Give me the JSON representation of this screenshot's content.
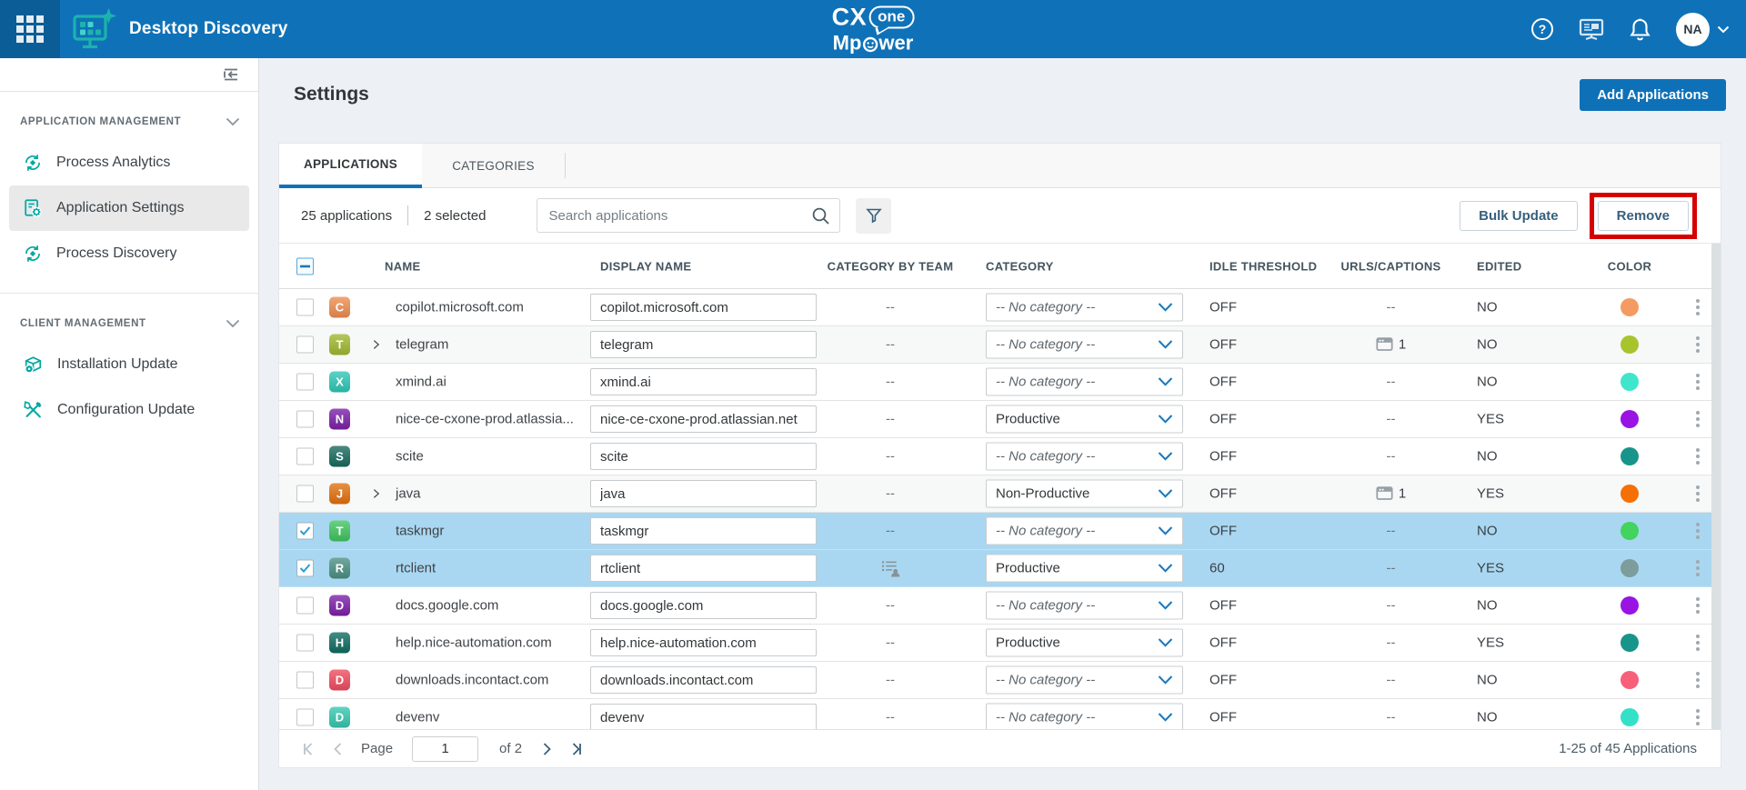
{
  "topbar": {
    "app_title": "Desktop Discovery",
    "brand": {
      "line1_left": "CX",
      "line1_bubble": "one",
      "line2_prefix": "Mp",
      "line2_suffix": "wer"
    },
    "avatar": "NA"
  },
  "sidebar": {
    "sections": [
      {
        "label": "APPLICATION MANAGEMENT",
        "items": [
          {
            "label": "Process Analytics"
          },
          {
            "label": "Application Settings"
          },
          {
            "label": "Process Discovery"
          }
        ]
      },
      {
        "label": "CLIENT MANAGEMENT",
        "items": [
          {
            "label": "Installation Update"
          },
          {
            "label": "Configuration Update"
          }
        ]
      }
    ]
  },
  "page": {
    "title": "Settings",
    "add_button": "Add Applications"
  },
  "tabs": {
    "applications": "APPLICATIONS",
    "categories": "CATEGORIES"
  },
  "toolbar": {
    "count_label": "25 applications",
    "selected_label": "2 selected",
    "search_placeholder": "Search applications",
    "bulk_update": "Bulk Update",
    "remove": "Remove"
  },
  "table": {
    "columns": {
      "name": "NAME",
      "display_name": "DISPLAY NAME",
      "category_by_team": "CATEGORY BY TEAM",
      "category": "CATEGORY",
      "idle_threshold": "IDLE THRESHOLD",
      "urls_captions": "URLS/CAPTIONS",
      "edited": "EDITED",
      "color": "COLOR"
    },
    "rows": [
      {
        "name": "copilot.microsoft.com",
        "display": "copilot.microsoft.com",
        "letter": "C",
        "tile": "#ee8c4f",
        "team": "--",
        "category": "-- No category --",
        "no_cat": true,
        "idle": "OFF",
        "urls": "--",
        "edited": "NO",
        "dot": "#f49b63"
      },
      {
        "name": "telegram",
        "display": "telegram",
        "letter": "T",
        "tile": "#9fb82f",
        "expandable": true,
        "group": true,
        "team": "--",
        "category": "-- No category --",
        "no_cat": true,
        "idle": "OFF",
        "urls_count": "1",
        "edited": "NO",
        "dot": "#a8c42d"
      },
      {
        "name": "xmind.ai",
        "display": "xmind.ai",
        "letter": "X",
        "tile": "#2ec6b5",
        "team": "--",
        "category": "-- No category --",
        "no_cat": true,
        "idle": "OFF",
        "urls": "--",
        "edited": "NO",
        "dot": "#3fe6cc"
      },
      {
        "name": "nice-ce-cxone-prod.atlassia...",
        "display": "nice-ce-cxone-prod.atlassian.net",
        "letter": "N",
        "tile": "#7b1fa8",
        "team": "--",
        "category": "Productive",
        "no_cat": false,
        "idle": "OFF",
        "urls": "--",
        "edited": "YES",
        "dot": "#9913e3"
      },
      {
        "name": "scite",
        "display": "scite",
        "letter": "S",
        "tile": "#18695d",
        "team": "--",
        "category": "-- No category --",
        "no_cat": true,
        "idle": "OFF",
        "urls": "--",
        "edited": "NO",
        "dot": "#18948a"
      },
      {
        "name": "java",
        "display": "java",
        "letter": "J",
        "tile": "#e2700f",
        "expandable": true,
        "group": true,
        "team": "--",
        "category": "Non-Productive",
        "no_cat": false,
        "idle": "OFF",
        "urls_count": "1",
        "edited": "YES",
        "dot": "#f56f02"
      },
      {
        "name": "taskmgr",
        "display": "taskmgr",
        "letter": "T",
        "tile": "#3fc45f",
        "selected": true,
        "team": "--",
        "category": "-- No category --",
        "no_cat": true,
        "idle": "OFF",
        "urls": "--",
        "edited": "NO",
        "dot": "#43d35f"
      },
      {
        "name": "rtclient",
        "display": "rtclient",
        "letter": "R",
        "tile": "#4a8f82",
        "selected": true,
        "team_icon": true,
        "category": "Productive",
        "no_cat": false,
        "idle": "60",
        "urls": "--",
        "edited": "YES",
        "dot": "#7d9c9c"
      },
      {
        "name": "docs.google.com",
        "display": "docs.google.com",
        "letter": "D",
        "tile": "#7b1fa8",
        "team": "--",
        "category": "-- No category --",
        "no_cat": true,
        "idle": "OFF",
        "urls": "--",
        "edited": "NO",
        "dot": "#9913e3"
      },
      {
        "name": "help.nice-automation.com",
        "display": "help.nice-automation.com",
        "letter": "H",
        "tile": "#0e6b60",
        "team": "--",
        "category": "Productive",
        "no_cat": false,
        "idle": "OFF",
        "urls": "--",
        "edited": "YES",
        "dot": "#18948a"
      },
      {
        "name": "downloads.incontact.com",
        "display": "downloads.incontact.com",
        "letter": "D",
        "tile": "#ef4b5f",
        "team": "--",
        "category": "-- No category --",
        "no_cat": true,
        "idle": "OFF",
        "urls": "--",
        "edited": "NO",
        "dot": "#f7607a"
      },
      {
        "name": "devenv",
        "display": "devenv",
        "letter": "D",
        "tile": "#35c7ae",
        "team": "--",
        "category": "-- No category --",
        "no_cat": true,
        "idle": "OFF",
        "urls": "--",
        "edited": "NO",
        "dot": "#35e0c8"
      }
    ]
  },
  "pagination": {
    "page_label": "Page",
    "page_value": "1",
    "of_label": "of 2",
    "range_label": "1-25 of 45 Applications"
  },
  "colors": {
    "accent": "#0e72b8",
    "annotation": "#d60000",
    "selected_row": "#a9d7f1"
  }
}
